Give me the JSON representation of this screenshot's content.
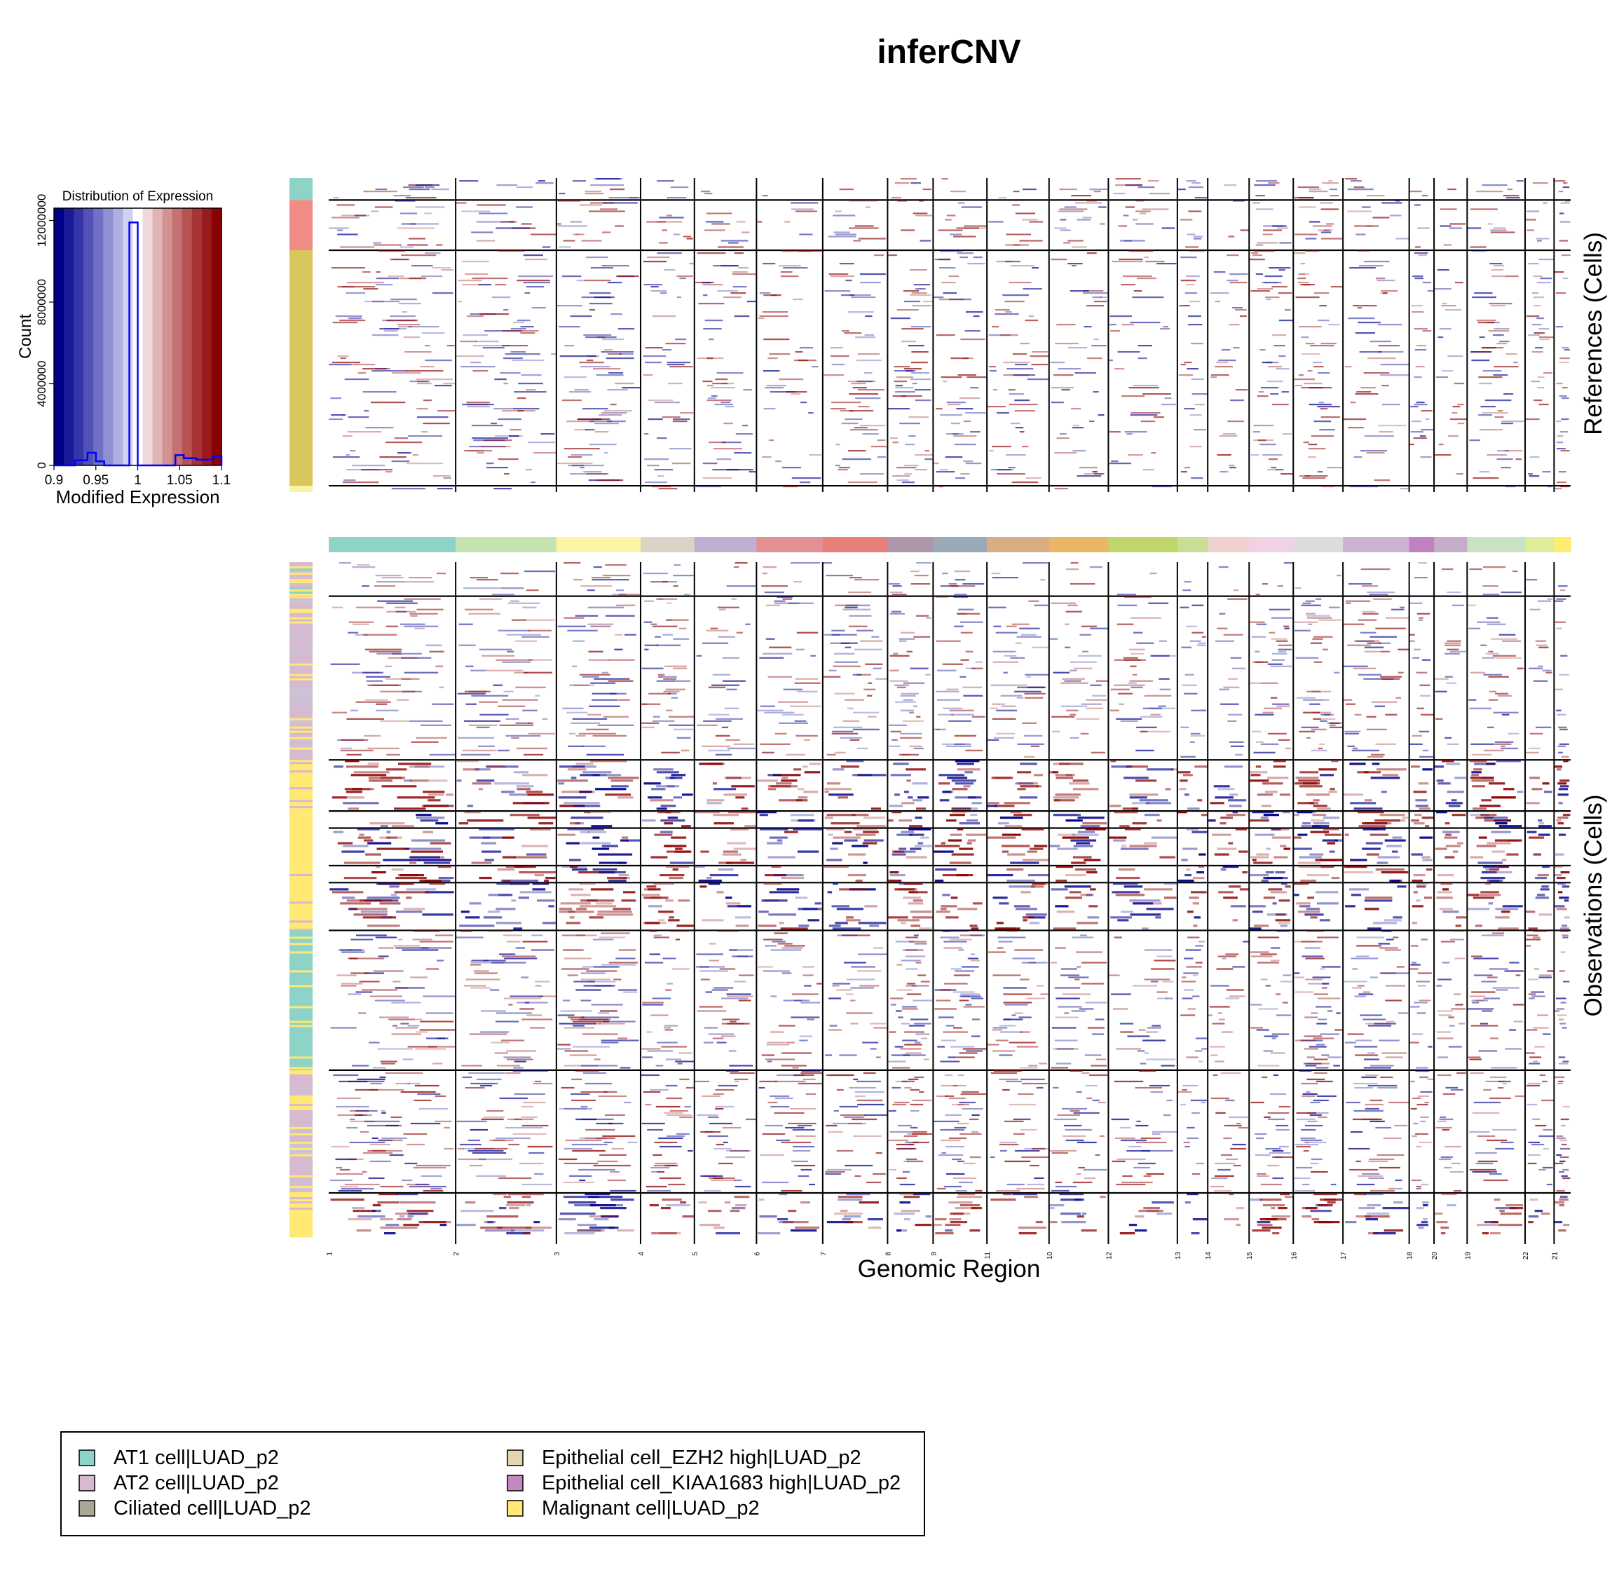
{
  "title": "inferCNV",
  "colors": {
    "blue": "#00008b",
    "red": "#8b0000",
    "hist_line": "#0000ff"
  },
  "histogram": {
    "title": "Distribution of Expression",
    "xlabel": "Modified Expression",
    "ylabel": "Count",
    "x_ticks": [
      "0.9",
      "0.95",
      "1",
      "1.05",
      "1.1"
    ],
    "x_tick_values": [
      0.9,
      0.95,
      1.0,
      1.05,
      1.1
    ],
    "y_ticks": [
      "0",
      "4000000",
      "8000000",
      "12000000"
    ],
    "y_tick_values": [
      0,
      4000000,
      8000000,
      12000000
    ],
    "xlim": [
      0.9,
      1.1
    ],
    "ylim": [
      0,
      12600000
    ],
    "color_bins": [
      "#00008b",
      "#1a1a99",
      "#3535a8",
      "#5252b6",
      "#7070c4",
      "#8f8fd2",
      "#b0b0e0",
      "#d2d2ee",
      "#ffffff",
      "#eed8d8",
      "#e0b4b4",
      "#d29292",
      "#c47272",
      "#b65353",
      "#a83535",
      "#991a1a",
      "#8b0000"
    ],
    "bins": [
      {
        "x0": 0.9,
        "x1": 0.925,
        "count": 0
      },
      {
        "x0": 0.925,
        "x1": 0.94,
        "count": 250000
      },
      {
        "x0": 0.94,
        "x1": 0.95,
        "count": 620000
      },
      {
        "x0": 0.95,
        "x1": 0.96,
        "count": 200000
      },
      {
        "x0": 0.96,
        "x1": 0.99,
        "count": 0
      },
      {
        "x0": 0.99,
        "x1": 1.0,
        "count": 11900000
      },
      {
        "x0": 1.0,
        "x1": 1.045,
        "count": 0
      },
      {
        "x0": 1.045,
        "x1": 1.055,
        "count": 500000
      },
      {
        "x0": 1.055,
        "x1": 1.07,
        "count": 350000
      },
      {
        "x0": 1.07,
        "x1": 1.09,
        "count": 280000
      },
      {
        "x0": 1.09,
        "x1": 1.1,
        "count": 450000
      }
    ]
  },
  "chart_data": {
    "type": "heatmap",
    "title": "inferCNV",
    "xlabel": "Genomic Region",
    "ylabel_references": "References (Cells)",
    "ylabel_observations": "Observations (Cells)",
    "value_range": [
      0.9,
      1.1
    ],
    "chromosomes": [
      {
        "label": "1",
        "color": "#8dd3c7",
        "w": 9.2
      },
      {
        "label": "2",
        "color": "#c5e3b1",
        "w": 7.3
      },
      {
        "label": "3",
        "color": "#fbf6a4",
        "w": 6.1
      },
      {
        "label": "4",
        "color": "#d8d5c6",
        "w": 3.9
      },
      {
        "label": "5",
        "color": "#bfb0d2",
        "w": 4.5
      },
      {
        "label": "6",
        "color": "#e48f91",
        "w": 4.8
      },
      {
        "label": "7",
        "color": "#e7807a",
        "w": 4.7
      },
      {
        "label": "8",
        "color": "#ad98ab",
        "w": 3.3
      },
      {
        "label": "9",
        "color": "#99aab6",
        "w": 3.9
      },
      {
        "label": "11",
        "color": "#d8ad81",
        "w": 4.5
      },
      {
        "label": "10",
        "color": "#e8b665",
        "w": 4.3
      },
      {
        "label": "12",
        "color": "#c0d66a",
        "w": 5.0
      },
      {
        "label": "13",
        "color": "#c9dd96",
        "w": 2.2
      },
      {
        "label": "14",
        "color": "#efd1ce",
        "w": 3.0
      },
      {
        "label": "15",
        "color": "#f1d1e4",
        "w": 3.2
      },
      {
        "label": "16",
        "color": "#dcdcdc",
        "w": 3.6
      },
      {
        "label": "17",
        "color": "#cbb1d2",
        "w": 4.8
      },
      {
        "label": "18",
        "color": "#c180c1",
        "w": 1.8
      },
      {
        "label": "20",
        "color": "#c3adc8",
        "w": 2.4
      },
      {
        "label": "19",
        "color": "#c8e2c2",
        "w": 4.2
      },
      {
        "label": "22",
        "color": "#e0eb9c",
        "w": 2.1
      },
      {
        "label": "21",
        "color": "#ffed6f",
        "w": 1.2
      }
    ],
    "reference_groups": [
      {
        "name": "AT1 cell|LUAD_p2",
        "color": "#8dd3c7",
        "fraction": 0.07
      },
      {
        "name": "Epithelial cell_KIAA1683 high|LUAD_p2",
        "color": "#ee8c85",
        "fraction": 0.16
      },
      {
        "name": "Epithelial cell_EZH2 high|LUAD_p2",
        "color": "#d9c65c",
        "fraction": 0.75
      },
      {
        "name": "Ciliated cell|LUAD_p2",
        "color": "#fbf2a4",
        "fraction": 0.02
      }
    ],
    "observation_clusters": [
      {
        "fraction": 0.05,
        "intensity": 0.15,
        "annotation": "mixed"
      },
      {
        "fraction": 0.24,
        "intensity": 0.35,
        "annotation": "AT2"
      },
      {
        "fraction": 0.075,
        "intensity": 0.8,
        "annotation": "Malignant"
      },
      {
        "fraction": 0.025,
        "intensity": 0.9,
        "annotation": "Malignant"
      },
      {
        "fraction": 0.055,
        "intensity": 0.85,
        "annotation": "Malignant"
      },
      {
        "fraction": 0.025,
        "intensity": 0.8,
        "annotation": "Malignant"
      },
      {
        "fraction": 0.07,
        "intensity": 0.75,
        "annotation": "Malignant"
      },
      {
        "fraction": 0.205,
        "intensity": 0.4,
        "annotation": "AT1"
      },
      {
        "fraction": 0.18,
        "intensity": 0.45,
        "annotation": "AT2"
      },
      {
        "fraction": 0.065,
        "intensity": 0.7,
        "annotation": "Malignant"
      }
    ]
  },
  "legend": {
    "items": [
      {
        "label": "AT1 cell|LUAD_p2",
        "color": "#8dd3c7"
      },
      {
        "label": "AT2 cell|LUAD_p2",
        "color": "#d6bad0"
      },
      {
        "label": "Ciliated cell|LUAD_p2",
        "color": "#a9a894"
      },
      {
        "label": "Epithelial cell_EZH2 high|LUAD_p2",
        "color": "#e2d5b0"
      },
      {
        "label": "Epithelial cell_KIAA1683 high|LUAD_p2",
        "color": "#c488c1"
      },
      {
        "label": "Malignant cell|LUAD_p2",
        "color": "#ffe873"
      }
    ]
  }
}
